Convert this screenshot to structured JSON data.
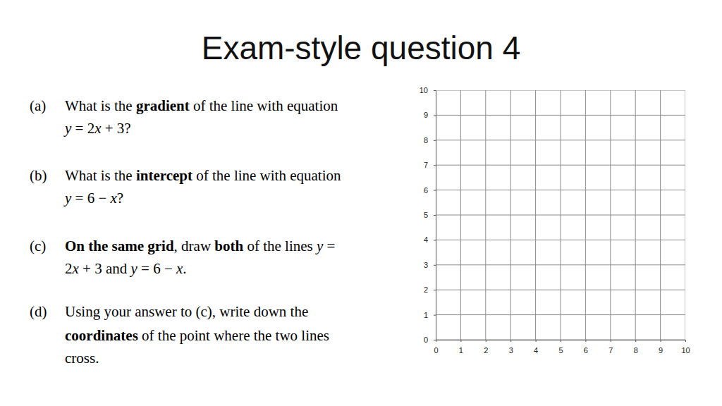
{
  "title": "Exam-style question 4",
  "questions": [
    {
      "label": "(a)",
      "lines": [
        [
          {
            "text": "What is the "
          },
          {
            "text": "gradient",
            "style": "bold"
          },
          {
            "text": " of the line with equation"
          }
        ],
        [
          {
            "text": "y",
            "style": "italic"
          },
          {
            "text": " = 2"
          },
          {
            "text": "x",
            "style": "italic"
          },
          {
            "text": " + 3?"
          }
        ]
      ]
    },
    {
      "label": "(b)",
      "lines": [
        [
          {
            "text": "What is the "
          },
          {
            "text": "intercept",
            "style": "bold"
          },
          {
            "text": " of the line with equation"
          }
        ],
        [
          {
            "text": "y",
            "style": "italic"
          },
          {
            "text": " = 6 − "
          },
          {
            "text": "x",
            "style": "italic"
          },
          {
            "text": "?"
          }
        ]
      ]
    },
    {
      "label": "(c)",
      "lines": [
        [
          {
            "text": "On the same grid",
            "style": "bold"
          },
          {
            "text": ", draw "
          },
          {
            "text": "both",
            "style": "bold"
          },
          {
            "text": " of the lines "
          },
          {
            "text": "y",
            "style": "italic"
          },
          {
            "text": " ="
          }
        ],
        [
          {
            "text": "2"
          },
          {
            "text": "x",
            "style": "italic"
          },
          {
            "text": " + 3 and "
          },
          {
            "text": "y",
            "style": "italic"
          },
          {
            "text": " = 6 − "
          },
          {
            "text": "x",
            "style": "italic"
          },
          {
            "text": "."
          }
        ]
      ]
    },
    {
      "label": "(d)",
      "lines": [
        [
          {
            "text": "Using your answer to (c), write down the"
          }
        ],
        [
          {
            "text": "coordinates",
            "style": "bold"
          },
          {
            "text": " of the point where the two lines"
          }
        ],
        [
          {
            "text": "cross."
          }
        ]
      ]
    }
  ],
  "chart_data": {
    "type": "grid",
    "xlim": [
      0,
      10
    ],
    "ylim": [
      0,
      10
    ],
    "xticks": [
      0,
      1,
      2,
      3,
      4,
      5,
      6,
      7,
      8,
      9,
      10
    ],
    "yticks": [
      0,
      1,
      2,
      3,
      4,
      5,
      6,
      7,
      8,
      9,
      10
    ],
    "grid": true
  }
}
